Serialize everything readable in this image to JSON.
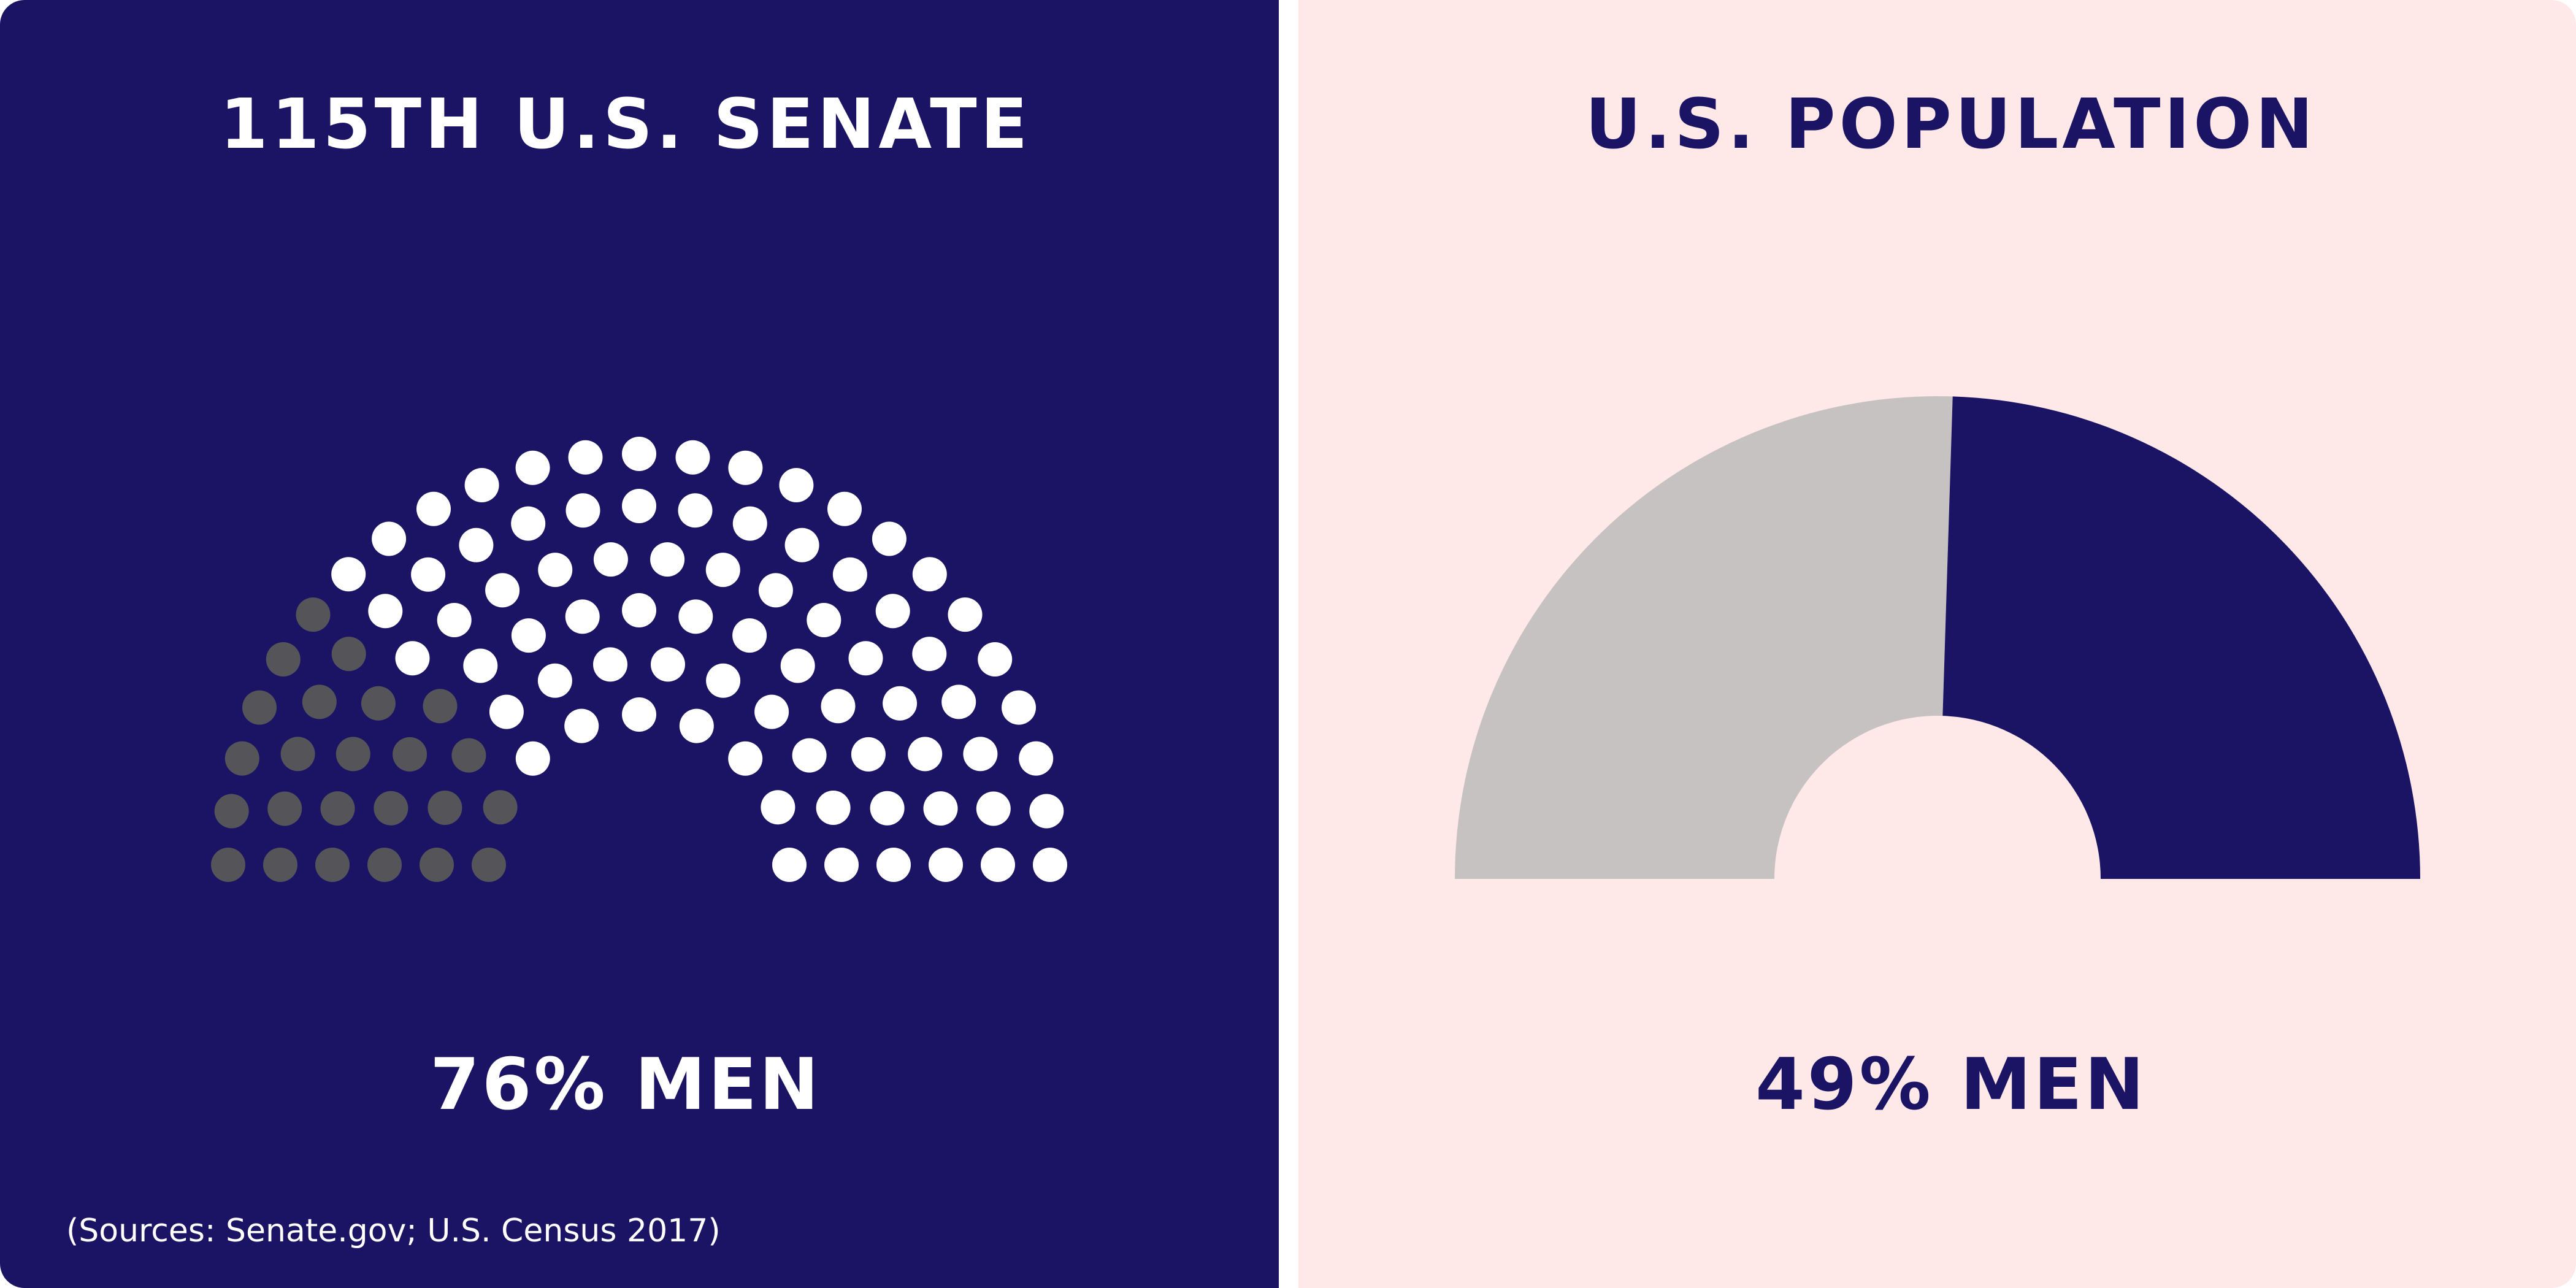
{
  "colors": {
    "navy": "#1b1464",
    "pink": "#ffe8e8",
    "white": "#ffffff",
    "women_seat_gray": "#555459",
    "women_slice_gray": "#c7c2c2"
  },
  "source_note": "(Sources: Senate.gov; U.S. Census 2017)",
  "chart_data": [
    {
      "type": "parliament",
      "title": "115TH U.S. SENATE",
      "stat_label": "76% MEN",
      "total_seats": 100,
      "rows": 6,
      "series": [
        {
          "name": "",
          "values": [
            24
          ],
          "color": "#555459"
        },
        {
          "name": "",
          "values": [
            76
          ],
          "color": "#ffffff"
        }
      ]
    },
    {
      "type": "pie",
      "variant": "half-donut",
      "title": "U.S. POPULATION",
      "stat_label": "49% MEN",
      "series": [
        {
          "name": "",
          "values": [
            51
          ],
          "color": "#c7c2c2"
        },
        {
          "name": "",
          "values": [
            49
          ],
          "color": "#1b1464"
        }
      ]
    }
  ]
}
